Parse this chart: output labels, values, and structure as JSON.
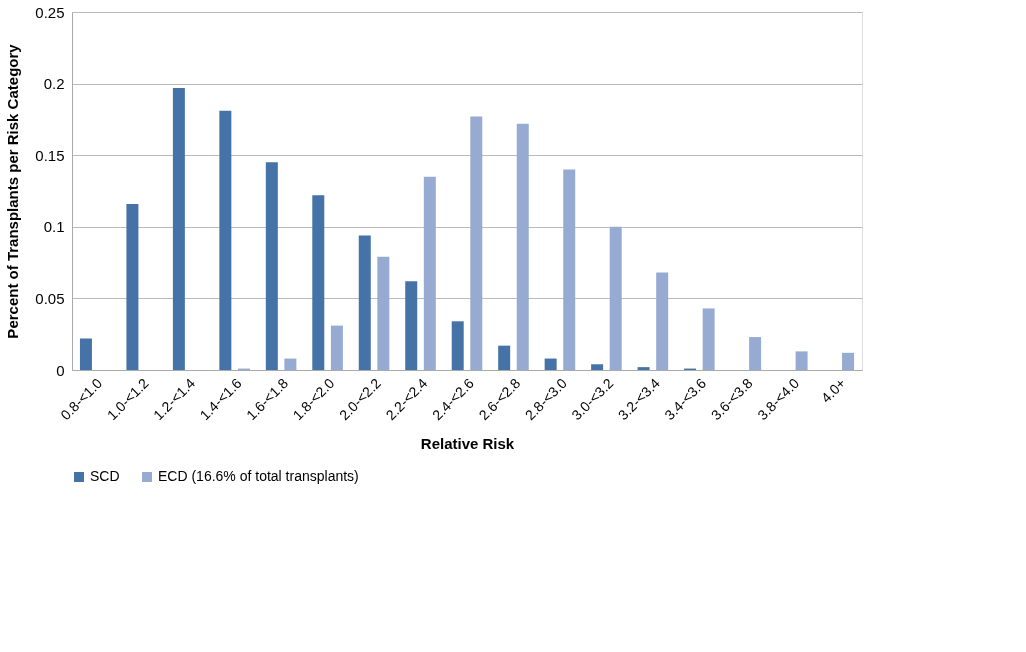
{
  "chart_data": {
    "type": "bar",
    "xlabel": "Relative Risk",
    "ylabel": "Percent of Transplants per Risk Category",
    "categories": [
      "0.8-<1.0",
      "1.0-<1.2",
      "1.2-<1.4",
      "1.4-<1.6",
      "1.6-<1.8",
      "1.8-<2.0",
      "2.0-<2.2",
      "2.2-<2.4",
      "2.4-<2.6",
      "2.6-<2.8",
      "2.8-<3.0",
      "3.0-<3.2",
      "3.2-<3.4",
      "3.4-<3.6",
      "3.6-<3.8",
      "3.8-<4.0",
      "4.0+"
    ],
    "series": [
      {
        "name": "SCD",
        "color": "#4573a7",
        "values": [
          0.022,
          0.116,
          0.197,
          0.181,
          0.145,
          0.122,
          0.094,
          0.062,
          0.034,
          0.017,
          0.008,
          0.004,
          0.002,
          0.001,
          0,
          0,
          0
        ]
      },
      {
        "name": "ECD (16.6% of total transplants)",
        "color": "#97abd2",
        "values": [
          0,
          0,
          0,
          0.001,
          0.008,
          0.031,
          0.079,
          0.135,
          0.177,
          0.172,
          0.14,
          0.1,
          0.068,
          0.043,
          0.023,
          0.013,
          0.012
        ]
      }
    ],
    "ylim": [
      0,
      0.25
    ],
    "yticks": [
      0,
      0.05,
      0.1,
      0.15,
      0.2,
      0.25
    ],
    "grid": "y",
    "legend": "bottom"
  }
}
